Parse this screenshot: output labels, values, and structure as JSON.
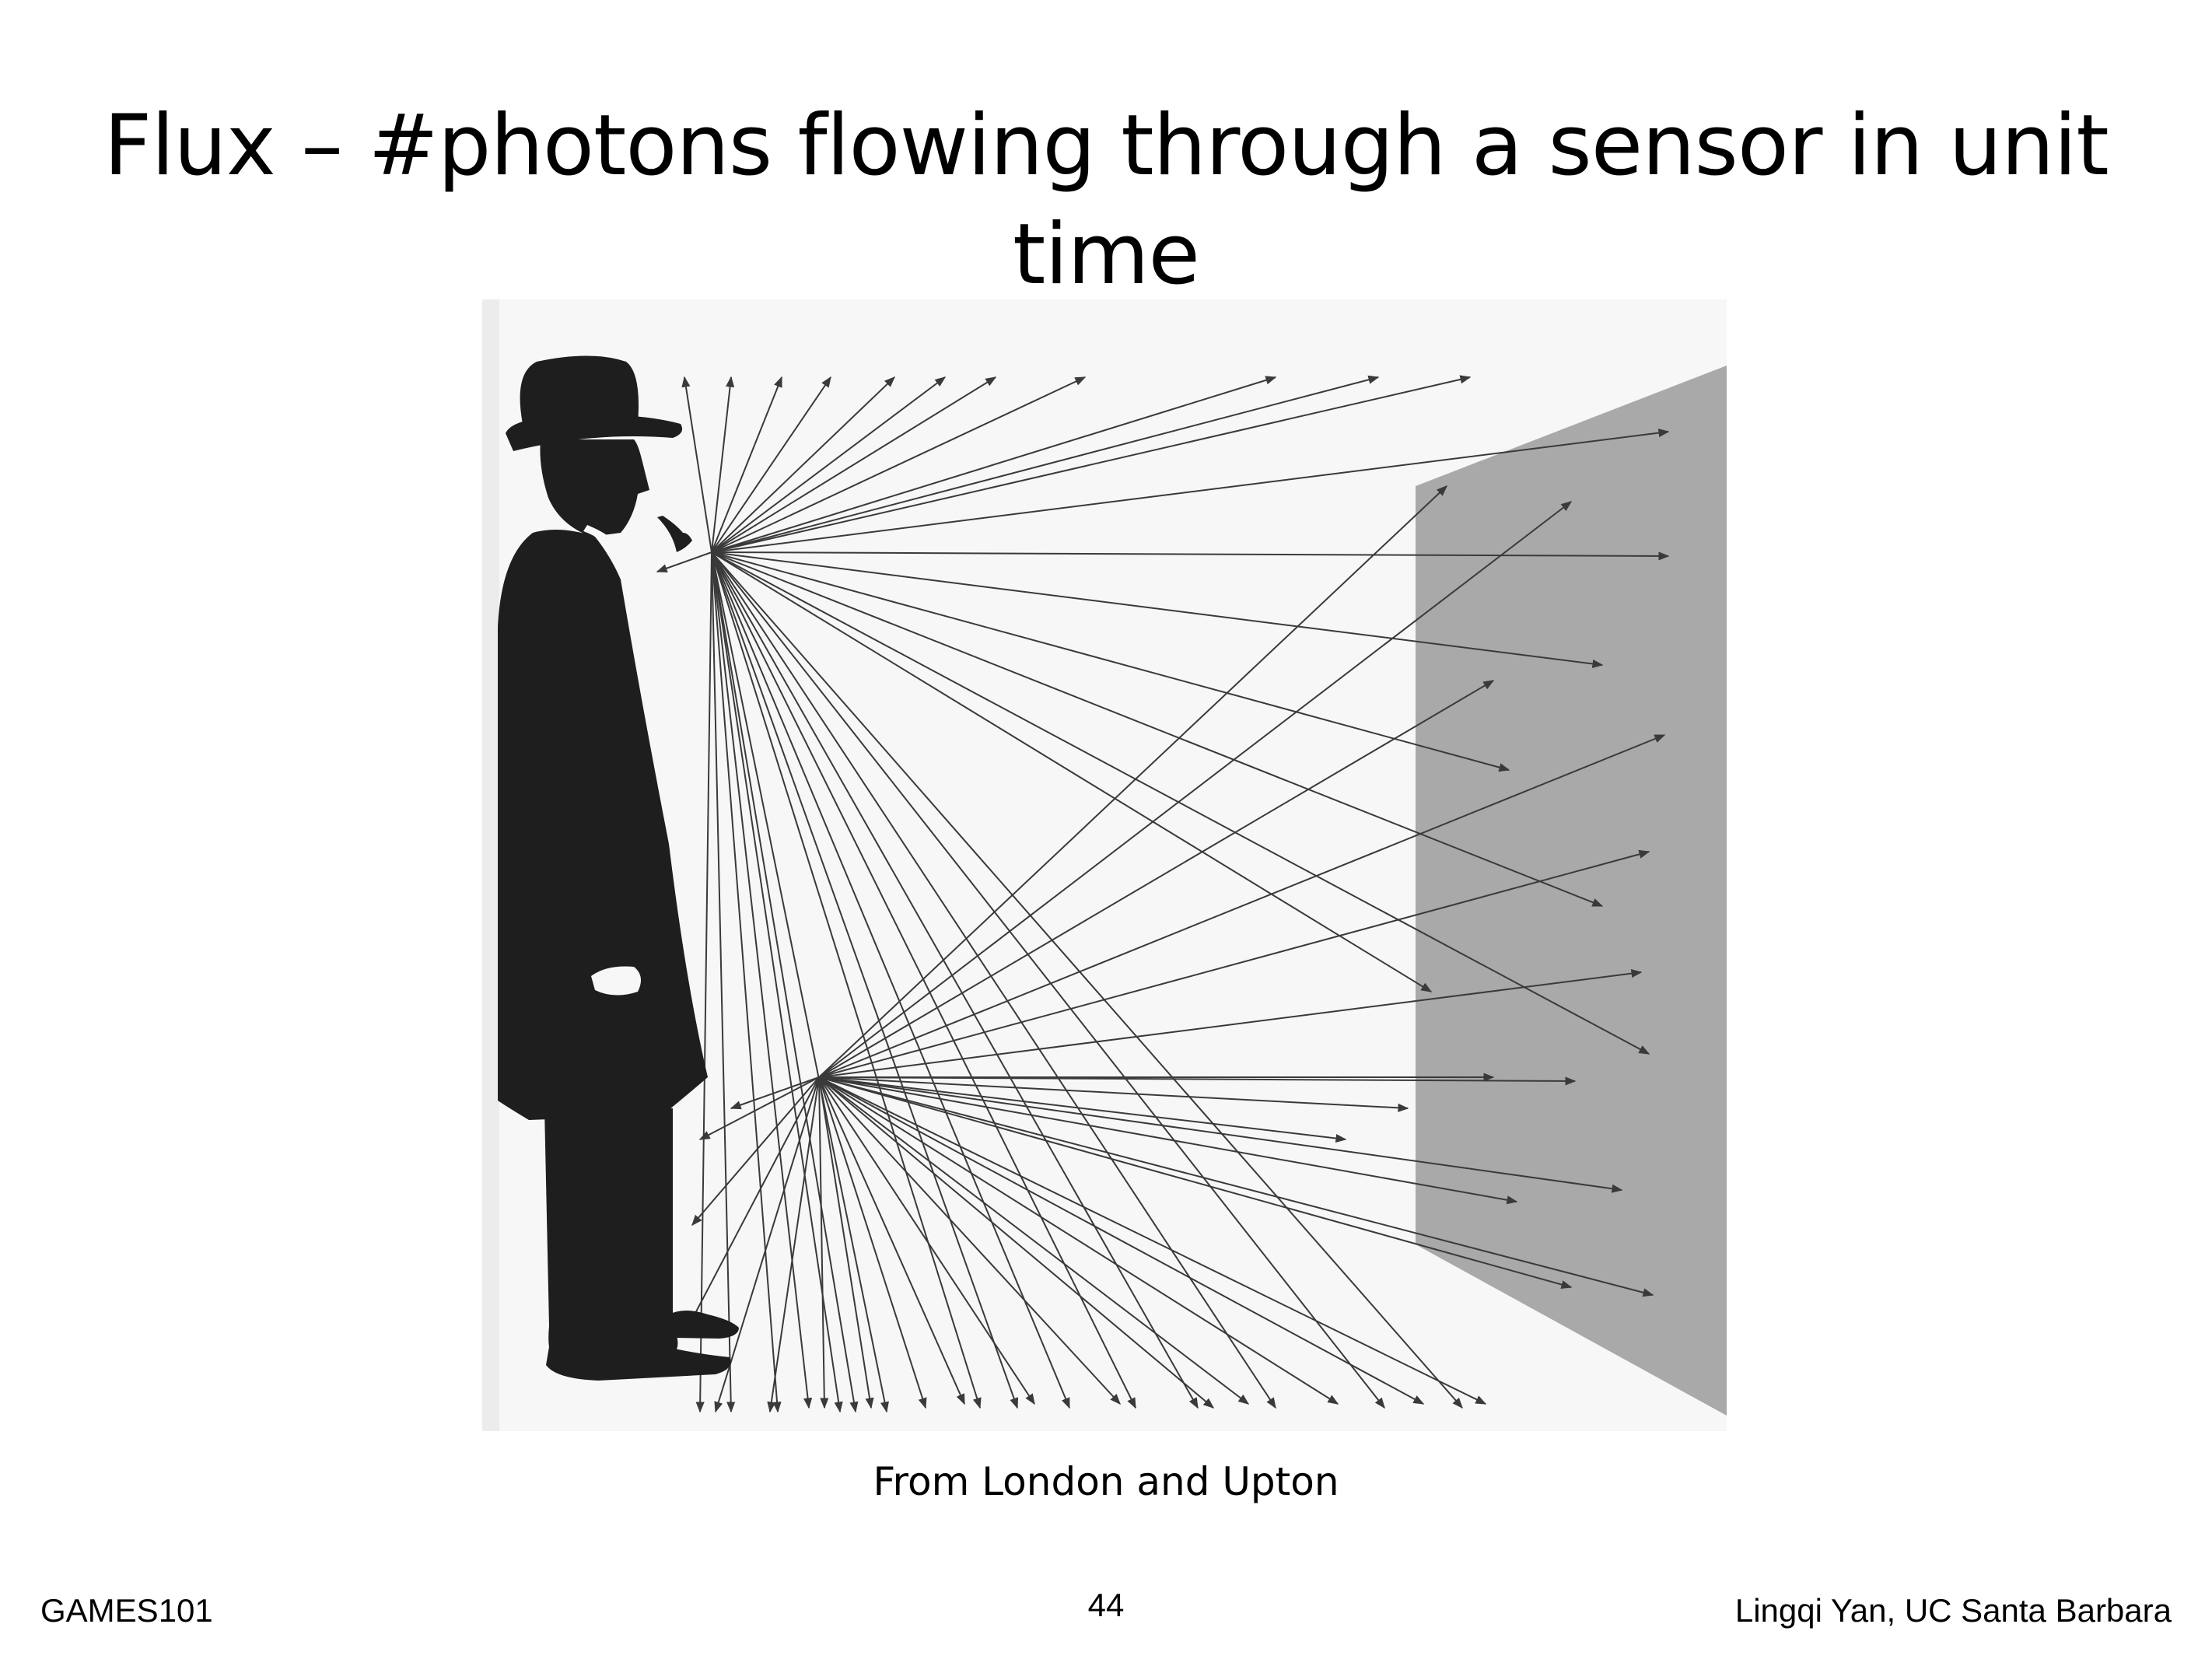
{
  "slide": {
    "title": "Flux – #photons flowing through a sensor in unit time",
    "caption": "From London and Upton"
  },
  "footer": {
    "course": "GAMES101",
    "page_number": "44",
    "author": "Lingqi Yan, UC Santa Barbara"
  },
  "colors": {
    "background": "#ffffff",
    "text": "#000000",
    "sensor_plane": "#a9a9a9",
    "ray": "#3a3a3a",
    "silhouette": "#1e1e1e"
  }
}
